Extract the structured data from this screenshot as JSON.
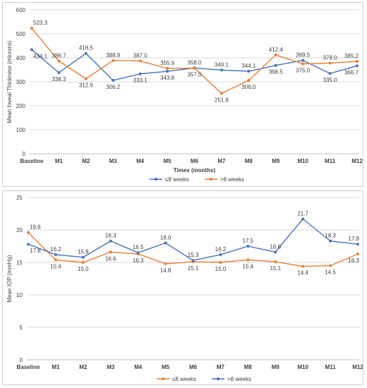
{
  "chart_data": [
    {
      "type": "line",
      "title": "",
      "xlabel": "Times (months)",
      "ylabel": "Mean foveal Thickness (microns)",
      "ylim": [
        0,
        600
      ],
      "yticks": [
        "0",
        "100",
        "200",
        "300",
        "400",
        "500",
        "600"
      ],
      "categories": [
        "Baseline",
        "M1",
        "M2",
        "M3",
        "M4",
        "M5",
        "M6",
        "M7",
        "M8",
        "M9",
        "M10",
        "M11",
        "M12"
      ],
      "grid": true,
      "legend": "bottom",
      "series": [
        {
          "name": "≤8 weeks",
          "color": "#4472C4",
          "values": [
            434.1,
            338.3,
            418.5,
            306.2,
            333.1,
            343.8,
            358.0,
            349.1,
            344.1,
            368.5,
            389.5,
            335.0,
            366.7
          ],
          "labels": [
            "434.1",
            "338.3",
            "418.5",
            "306.2",
            "333.1",
            "343.8",
            "358.0",
            "349.1",
            "344.1",
            "368.5",
            "389.5",
            "335.0",
            "366.7"
          ]
        },
        {
          "name": ">8 weeks",
          "color": "#ED7D31",
          "values": [
            523.3,
            386.7,
            312.9,
            388.9,
            387.0,
            355.9,
            357.0,
            251.8,
            306.0,
            412.4,
            375.0,
            378.0,
            385.2
          ],
          "labels": [
            "523.3",
            "386.7",
            "312.9",
            "388.9",
            "387.0",
            "355.9",
            "357.0",
            "251.8",
            "306.0",
            "412.4",
            "375.0",
            "378.0",
            "385.2"
          ]
        }
      ]
    },
    {
      "type": "line",
      "title": "",
      "xlabel": "",
      "ylabel": "Mean IOP (mmHg)",
      "ylim": [
        0,
        25
      ],
      "yticks": [
        "0",
        "5",
        "10",
        "15",
        "20",
        "25"
      ],
      "categories": [
        "Baseline",
        "M1",
        "M2",
        "M3",
        "M4",
        "M5",
        "M6",
        "M7",
        "M8",
        "M9",
        "M10",
        "M11",
        "M12"
      ],
      "grid": true,
      "legend": "bottom",
      "series": [
        {
          "name": "≤8 weeks",
          "color": "#ED7D31",
          "values": [
            19.6,
            15.4,
            15.0,
            16.6,
            16.3,
            14.8,
            15.1,
            15.0,
            15.4,
            15.1,
            14.4,
            14.5,
            16.3
          ],
          "labels": [
            "19.6",
            "15.4",
            "15.0",
            "16.6",
            "16.3",
            "14.8",
            "15.1",
            "15.0",
            "15.4",
            "15.1",
            "14.4",
            "14.5",
            "16.3"
          ]
        },
        {
          "name": ">8 weeks",
          "color": "#4472C4",
          "values": [
            17.8,
            16.2,
            15.8,
            18.3,
            16.5,
            18.0,
            15.3,
            16.2,
            17.5,
            16.6,
            21.7,
            18.3,
            17.8
          ],
          "labels": [
            "17.8",
            "16.2",
            "15.8",
            "18.3",
            "16.5",
            "18.0",
            "15.3",
            "16.2",
            "17.5",
            "16.6",
            "21.7",
            "18.3",
            "17.8"
          ]
        }
      ]
    }
  ]
}
